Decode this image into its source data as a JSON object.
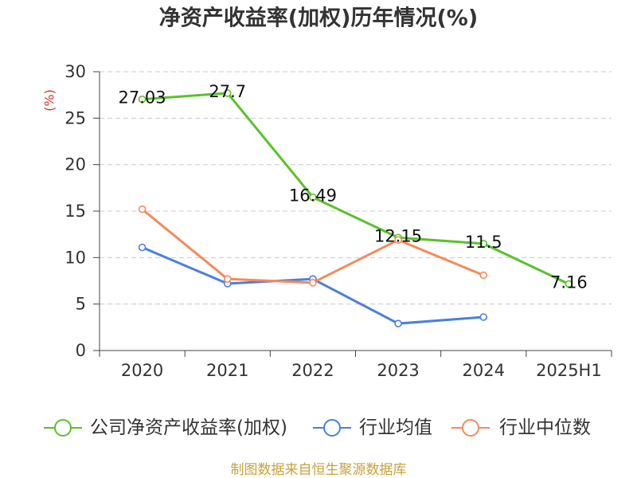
{
  "chart_data": {
    "type": "line",
    "title": "净资产收益率(加权)历年情况(%)",
    "xlabel": "",
    "ylabel": "(%)",
    "categories": [
      "2020",
      "2021",
      "2022",
      "2023",
      "2024",
      "2025H1"
    ],
    "ylim": [
      0,
      30
    ],
    "yticks": [
      0,
      5,
      10,
      15,
      20,
      25,
      30
    ],
    "grid": true,
    "legend_position": "bottom",
    "series": [
      {
        "name": "公司净资产收益率(加权)",
        "color": "#5ac12b",
        "values": [
          27.03,
          27.7,
          16.49,
          12.15,
          11.5,
          7.16
        ],
        "show_data_labels": true
      },
      {
        "name": "行业均值",
        "color": "#4b7fdc",
        "values": [
          11.1,
          7.2,
          7.7,
          2.9,
          3.6,
          null
        ],
        "show_data_labels": false
      },
      {
        "name": "行业中位数",
        "color": "#f48a5c",
        "values": [
          15.2,
          7.7,
          7.3,
          11.9,
          8.1,
          null
        ],
        "show_data_labels": false
      }
    ]
  },
  "footer": {
    "source": "制图数据来自恒生聚源数据库"
  },
  "colors": {
    "ylabel": "#d7322c",
    "footer": "#c9a13b",
    "axis": "#444444",
    "grid": "#cccccc"
  }
}
